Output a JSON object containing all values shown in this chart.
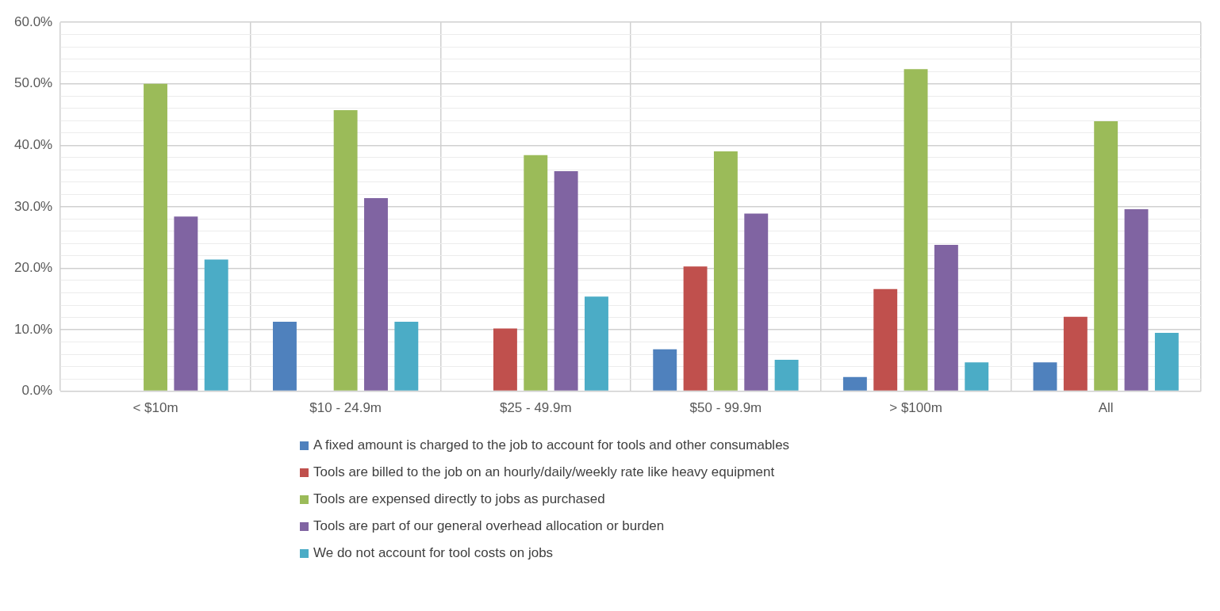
{
  "chart_data": {
    "type": "bar",
    "categories": [
      "< $10m",
      "$10 - 24.9m",
      "$25 - 49.9m",
      "$50 - 99.9m",
      "> $100m",
      "All"
    ],
    "series": [
      {
        "name": "A fixed amount is charged to the job to account for tools and other consumables",
        "color": "#4f81bd",
        "values": [
          0,
          11.3,
          0,
          6.8,
          2.3,
          4.7
        ]
      },
      {
        "name": "Tools are billed to the job on an hourly/daily/weekly rate like heavy equipment",
        "color": "#c0504d",
        "values": [
          0,
          0,
          10.2,
          20.3,
          16.6,
          12.1
        ]
      },
      {
        "name": "Tools are expensed directly to jobs as purchased",
        "color": "#9bbb59",
        "values": [
          50.0,
          45.7,
          38.4,
          39.0,
          52.4,
          43.9
        ]
      },
      {
        "name": "Tools are part of our general overhead allocation or burden",
        "color": "#8064a2",
        "values": [
          28.4,
          31.4,
          35.8,
          28.9,
          23.8,
          29.6
        ]
      },
      {
        "name": "We do not account for tool costs on jobs",
        "color": "#4bacc6",
        "values": [
          21.4,
          11.3,
          15.4,
          5.1,
          4.7,
          9.5
        ]
      }
    ],
    "ylim": [
      0,
      60
    ],
    "yticks": [
      {
        "value": 0,
        "label": "0.0%"
      },
      {
        "value": 2,
        "label": null
      },
      {
        "value": 4,
        "label": null
      },
      {
        "value": 6,
        "label": null
      },
      {
        "value": 8,
        "label": null
      },
      {
        "value": 10,
        "label": "10.0%"
      },
      {
        "value": 12,
        "label": null
      },
      {
        "value": 14,
        "label": null
      },
      {
        "value": 16,
        "label": null
      },
      {
        "value": 18,
        "label": null
      },
      {
        "value": 20,
        "label": "20.0%"
      },
      {
        "value": 22,
        "label": null
      },
      {
        "value": 24,
        "label": null
      },
      {
        "value": 26,
        "label": null
      },
      {
        "value": 28,
        "label": null
      },
      {
        "value": 30,
        "label": "30.0%"
      },
      {
        "value": 32,
        "label": null
      },
      {
        "value": 34,
        "label": null
      },
      {
        "value": 36,
        "label": null
      },
      {
        "value": 38,
        "label": null
      },
      {
        "value": 40,
        "label": "40.0%"
      },
      {
        "value": 42,
        "label": null
      },
      {
        "value": 44,
        "label": null
      },
      {
        "value": 46,
        "label": null
      },
      {
        "value": 48,
        "label": null
      },
      {
        "value": 50,
        "label": "50.0%"
      },
      {
        "value": 52,
        "label": null
      },
      {
        "value": 54,
        "label": null
      },
      {
        "value": 56,
        "label": null
      },
      {
        "value": 58,
        "label": null
      },
      {
        "value": 60,
        "label": "60.0%"
      }
    ],
    "grid": true,
    "legend": "bottom"
  }
}
